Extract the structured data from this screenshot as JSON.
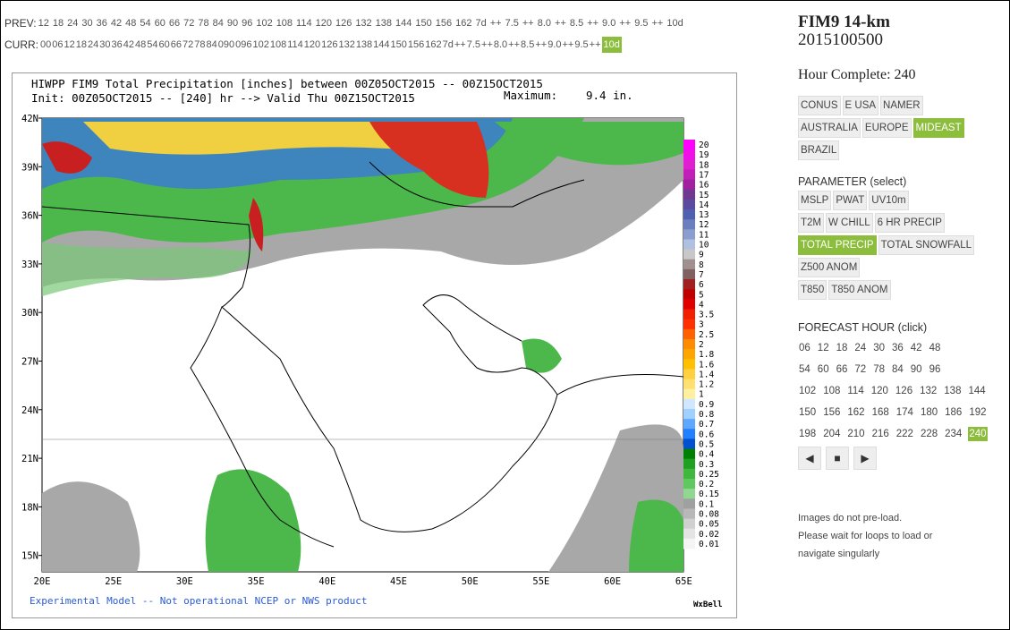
{
  "nav": {
    "prev_label": "PREV:",
    "prev_hours": [
      "12",
      "18",
      "24",
      "30",
      "36",
      "42",
      "48",
      "54",
      "60",
      "66",
      "72",
      "78",
      "84",
      "90",
      "96",
      "102",
      "108",
      "114",
      "120",
      "126",
      "132",
      "138",
      "144",
      "150",
      "156",
      "162",
      "7d",
      "++",
      "7.5",
      "++",
      "8.0",
      "++",
      "8.5",
      "++",
      "9.0",
      "++",
      "9.5",
      "++",
      "10d"
    ],
    "curr_label": "CURR:",
    "curr_hours": [
      "00",
      "06",
      "12",
      "18",
      "24",
      "30",
      "36",
      "42",
      "48",
      "54",
      "60",
      "66",
      "72",
      "78",
      "84",
      "090",
      "096",
      "102",
      "108",
      "114",
      "120",
      "126",
      "132",
      "138",
      "144",
      "150",
      "156",
      "162",
      "7d",
      "++",
      "7.5",
      "++",
      "8.0",
      "++",
      "8.5",
      "++",
      "9.0",
      "++",
      "9.5",
      "++",
      "10d"
    ]
  },
  "map": {
    "title": "HIWPP FIM9 Total Precipitation [inches] between 00Z05OCT2015 -- 00Z15OCT2015",
    "subtitle": "Init: 00Z05OCT2015 -- [240] hr --> Valid Thu 00Z15OCT2015",
    "maximum_label": "Maximum:",
    "maximum_value": "9.4 in.",
    "lat_labels": [
      "42N",
      "39N",
      "36N",
      "33N",
      "30N",
      "27N",
      "24N",
      "21N",
      "18N",
      "15N"
    ],
    "lon_labels": [
      "20E",
      "25E",
      "30E",
      "35E",
      "40E",
      "45E",
      "50E",
      "55E",
      "60E",
      "65E"
    ],
    "colorbar_labels": [
      "20",
      "19",
      "18",
      "17",
      "16",
      "15",
      "14",
      "13",
      "12",
      "11",
      "10",
      "9",
      "8",
      "7",
      "6",
      "5",
      "4",
      "3.5",
      "3",
      "2.5",
      "2",
      "1.8",
      "1.6",
      "1.4",
      "1.2",
      "1",
      "0.9",
      "0.8",
      "0.7",
      "0.6",
      "0.5",
      "0.4",
      "0.3",
      "0.25",
      "0.2",
      "0.15",
      "0.1",
      "0.08",
      "0.05",
      "0.02",
      "0.01"
    ],
    "footer": "Experimental Model -- Not operational NCEP or NWS product",
    "brand": "WxBell"
  },
  "sidebar": {
    "title": "FIM9 14-km",
    "run": "2015100500",
    "hour_complete": "Hour Complete: 240",
    "regions": [
      "CONUS",
      "E USA",
      "NAMER",
      "AUSTRALIA",
      "EUROPE",
      "MIDEAST",
      "BRAZIL"
    ],
    "parameter_heading": "PARAMETER (select)",
    "parameters": [
      [
        "MSLP",
        "PWAT",
        "UV10m"
      ],
      [
        "T2M",
        "W CHILL",
        "6 HR PRECIP"
      ],
      [
        "TOTAL PRECIP",
        "TOTAL SNOWFALL"
      ],
      [
        "Z500 ANOM"
      ],
      [
        "T850",
        "T850 ANOM"
      ]
    ],
    "forecast_heading": "FORECAST HOUR (click)",
    "forecast_hours": [
      [
        "06",
        "12",
        "18",
        "24",
        "30",
        "36",
        "42",
        "48"
      ],
      [
        "54",
        "60",
        "66",
        "72",
        "78",
        "84",
        "90",
        "96"
      ],
      [
        "102",
        "108",
        "114",
        "120",
        "126",
        "132",
        "138",
        "144"
      ],
      [
        "150",
        "156",
        "162",
        "168",
        "174",
        "180",
        "186",
        "192"
      ],
      [
        "198",
        "204",
        "210",
        "216",
        "222",
        "228",
        "234",
        "240"
      ]
    ],
    "notes": [
      "Images do not pre-load.",
      "Please wait for loops to load or",
      "navigate singularly"
    ]
  }
}
